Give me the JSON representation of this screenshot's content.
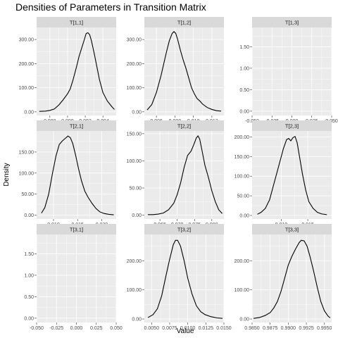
{
  "chart_data": {
    "type": "density-facets",
    "title": "Densities of Parameters in Transition Matrix",
    "xlabel": "Value",
    "ylabel": "Density",
    "grid": true,
    "legend": "none",
    "colors": {
      "panel": "#ebebeb",
      "strip": "#d9d9d9",
      "grid": "#ffffff",
      "line": "#000000"
    },
    "panels": [
      {
        "label": "T[1,1]",
        "xlim": [
          0.9865,
          0.9955
        ],
        "ylim": [
          -15,
          350
        ],
        "xticks": [
          0.988,
          0.99,
          0.992,
          0.994
        ],
        "xtick_labels": [
          "0.988",
          "0.990",
          "0.992",
          "0.994"
        ],
        "yticks": [
          0,
          100,
          200,
          300
        ],
        "ytick_labels": [
          "0.00",
          "100.00",
          "200.00",
          "300.00"
        ],
        "x": [
          0.9868,
          0.9875,
          0.988,
          0.9885,
          0.989,
          0.9895,
          0.99,
          0.9903,
          0.9906,
          0.991,
          0.9913,
          0.9916,
          0.9919,
          0.9921,
          0.9923,
          0.9925,
          0.9927,
          0.993,
          0.9933,
          0.9936,
          0.994,
          0.9945,
          0.995,
          0.9953
        ],
        "y": [
          2,
          3,
          6,
          12,
          28,
          50,
          75,
          95,
          130,
          185,
          230,
          265,
          300,
          325,
          328,
          320,
          295,
          245,
          190,
          135,
          80,
          45,
          22,
          10
        ]
      },
      {
        "label": "T[1,2]",
        "xlim": [
          0.0047,
          0.0133
        ],
        "ylim": [
          -15,
          350
        ],
        "xticks": [
          0.006,
          0.008,
          0.01,
          0.012
        ],
        "xtick_labels": [
          "0.006",
          "0.008",
          "0.010",
          "0.012"
        ],
        "yticks": [
          0,
          100,
          200,
          300
        ],
        "ytick_labels": [
          "0.00",
          "100.00",
          "200.00",
          "300.00"
        ],
        "x": [
          0.005,
          0.0055,
          0.006,
          0.0065,
          0.0068,
          0.0071,
          0.0074,
          0.0077,
          0.0079,
          0.0081,
          0.0083,
          0.0086,
          0.0089,
          0.0092,
          0.0095,
          0.0098,
          0.0101,
          0.0104,
          0.0107,
          0.011,
          0.0115,
          0.012,
          0.0125,
          0.013
        ],
        "y": [
          8,
          30,
          80,
          150,
          200,
          250,
          295,
          325,
          333,
          325,
          300,
          255,
          215,
          180,
          140,
          100,
          75,
          55,
          45,
          32,
          18,
          10,
          5,
          3
        ]
      },
      {
        "label": "T[1,3]",
        "xlim": [
          -0.05,
          0.05
        ],
        "ylim": [
          -0.1,
          1.95
        ],
        "xticks": [
          -0.05,
          -0.025,
          0,
          0.025,
          0.05
        ],
        "xtick_labels": [
          "-0.050",
          "-0.025",
          "0.000",
          "0.025",
          "0.050"
        ],
        "yticks": [
          0,
          0.5,
          1.0,
          1.5
        ],
        "ytick_labels": [
          "0.00",
          "0.50",
          "1.00",
          "1.50"
        ],
        "x": [],
        "y": []
      },
      {
        "label": "T[2,1]",
        "xlim": [
          0.0065,
          0.023
        ],
        "ylim": [
          -9,
          200
        ],
        "xticks": [
          0.01,
          0.015,
          0.02
        ],
        "xtick_labels": [
          "0.010",
          "0.015",
          "0.020"
        ],
        "yticks": [
          0,
          50,
          100,
          150
        ],
        "ytick_labels": [
          "0.00",
          "50.00",
          "100.00",
          "150.00"
        ],
        "x": [
          0.0075,
          0.0082,
          0.009,
          0.0098,
          0.0105,
          0.0112,
          0.0118,
          0.0124,
          0.013,
          0.0135,
          0.014,
          0.0146,
          0.0152,
          0.0158,
          0.0165,
          0.0172,
          0.018,
          0.0188,
          0.0196,
          0.0205,
          0.0215,
          0.0225
        ],
        "y": [
          5,
          18,
          50,
          100,
          140,
          168,
          176,
          182,
          188,
          184,
          170,
          142,
          110,
          82,
          57,
          42,
          28,
          16,
          8,
          4,
          2,
          1
        ]
      },
      {
        "label": "T[2,2]",
        "xlim": [
          0.9605,
          0.9835
        ],
        "ylim": [
          -7,
          155
        ],
        "xticks": [
          0.965,
          0.97,
          0.975,
          0.98
        ],
        "xtick_labels": [
          "0.965",
          "0.970",
          "0.975",
          "0.980"
        ],
        "yticks": [
          0,
          50,
          100,
          150
        ],
        "ytick_labels": [
          "0.00",
          "50.00",
          "100.00",
          "150.00"
        ],
        "x": [
          0.9615,
          0.963,
          0.9645,
          0.966,
          0.9675,
          0.969,
          0.97,
          0.971,
          0.972,
          0.973,
          0.974,
          0.9748,
          0.9755,
          0.976,
          0.9765,
          0.9772,
          0.978,
          0.979,
          0.98,
          0.981,
          0.982,
          0.983
        ],
        "y": [
          1,
          1,
          2,
          4,
          10,
          22,
          38,
          60,
          88,
          110,
          118,
          130,
          142,
          146,
          140,
          118,
          92,
          70,
          45,
          25,
          10,
          3
        ]
      },
      {
        "label": "T[2,3]",
        "xlim": [
          0.0045,
          0.0195
        ],
        "ylim": [
          -9,
          215
        ],
        "xticks": [
          0.01,
          0.015
        ],
        "xtick_labels": [
          "0.010",
          "0.015"
        ],
        "yticks": [
          0,
          50,
          100,
          150,
          200
        ],
        "ytick_labels": [
          "0.00",
          "50.00",
          "100.00",
          "150.00",
          "200.00"
        ],
        "x": [
          0.0055,
          0.0062,
          0.007,
          0.0078,
          0.0085,
          0.0092,
          0.0098,
          0.0104,
          0.011,
          0.0114,
          0.0118,
          0.0122,
          0.0126,
          0.013,
          0.0135,
          0.014,
          0.0146,
          0.0152,
          0.016,
          0.0168,
          0.0176,
          0.0186
        ],
        "y": [
          3,
          8,
          18,
          40,
          75,
          110,
          140,
          170,
          193,
          196,
          190,
          198,
          201,
          185,
          145,
          105,
          65,
          35,
          18,
          8,
          4,
          2
        ]
      },
      {
        "label": "T[3,1]",
        "xlim": [
          -0.05,
          0.05
        ],
        "ylim": [
          -0.1,
          1.95
        ],
        "xticks": [
          -0.05,
          -0.025,
          0,
          0.025,
          0.05
        ],
        "xtick_labels": [
          "-0.050",
          "-0.025",
          "0.000",
          "0.025",
          "0.050"
        ],
        "yticks": [
          0,
          0.5,
          1.0,
          1.5
        ],
        "ytick_labels": [
          "0.00",
          "0.50",
          "1.00",
          "1.50"
        ],
        "x": [],
        "y": []
      },
      {
        "label": "T[3,2]",
        "xlim": [
          0.004,
          0.015
        ],
        "ylim": [
          -12,
          290
        ],
        "xticks": [
          0.005,
          0.0075,
          0.01,
          0.0125,
          0.015
        ],
        "xtick_labels": [
          "0.0050",
          "0.0075",
          "0.0100",
          "0.0125",
          "0.0150"
        ],
        "yticks": [
          0,
          100,
          200
        ],
        "ytick_labels": [
          "0.00",
          "100.00",
          "200.00"
        ],
        "x": [
          0.0045,
          0.0052,
          0.0058,
          0.0064,
          0.007,
          0.0075,
          0.008,
          0.0083,
          0.0086,
          0.009,
          0.0095,
          0.01,
          0.0106,
          0.0112,
          0.0118,
          0.0124,
          0.0132,
          0.014,
          0.0148
        ],
        "y": [
          5,
          15,
          35,
          80,
          150,
          205,
          255,
          270,
          270,
          250,
          200,
          140,
          85,
          45,
          25,
          15,
          8,
          4,
          2
        ]
      },
      {
        "label": "T[3,3]",
        "xlim": [
          0.985,
          0.996
        ],
        "ylim": [
          -12,
          290
        ],
        "xticks": [
          0.985,
          0.9875,
          0.99,
          0.9925,
          0.995
        ],
        "xtick_labels": [
          "0.9850",
          "0.9875",
          "0.9900",
          "0.9925",
          "0.9950"
        ],
        "yticks": [
          0,
          100,
          200
        ],
        "ytick_labels": [
          "0.00",
          "100.00",
          "200.00"
        ],
        "x": [
          0.9852,
          0.986,
          0.9868,
          0.9875,
          0.988,
          0.9885,
          0.989,
          0.9895,
          0.99,
          0.9905,
          0.991,
          0.9915,
          0.9918,
          0.9922,
          0.9926,
          0.993,
          0.9935,
          0.994,
          0.9945,
          0.995,
          0.9955,
          0.9958
        ],
        "y": [
          2,
          5,
          12,
          22,
          38,
          60,
          95,
          140,
          185,
          215,
          240,
          262,
          270,
          268,
          250,
          215,
          165,
          110,
          60,
          28,
          10,
          4
        ]
      }
    ]
  }
}
